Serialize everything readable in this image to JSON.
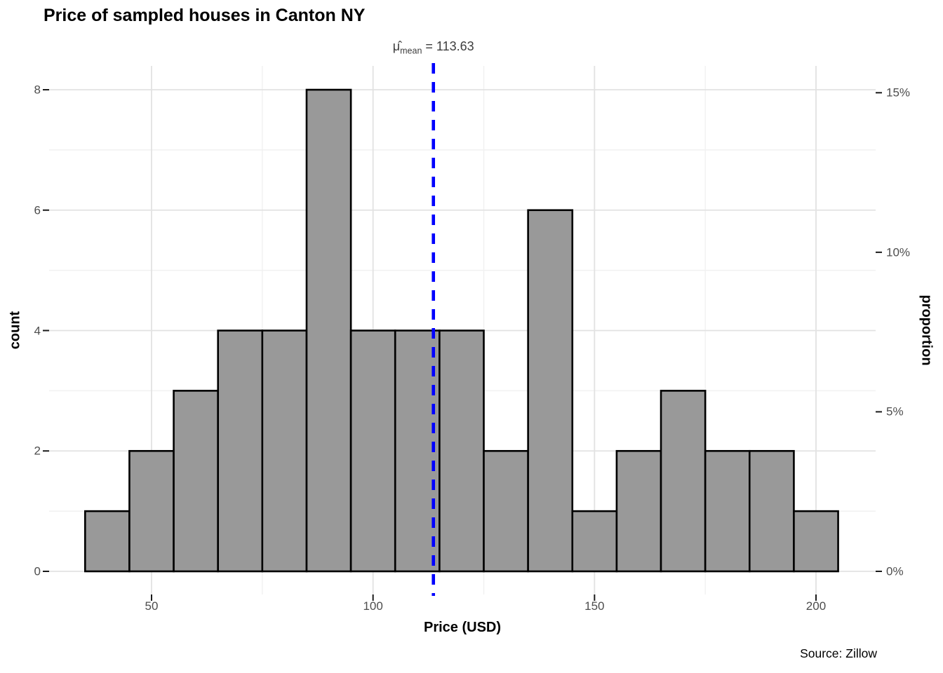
{
  "title": "Price of sampled houses in Canton NY",
  "caption": "Source: Zillow",
  "annotation": {
    "mu_hat": "μ̂",
    "subscript": "mean",
    "rest": " = 113.63",
    "full_text": "μ̂mean = 113.63"
  },
  "axes": {
    "x_title": "Price (USD)",
    "y_left_title": "count",
    "y_right_title": "proportion"
  },
  "chart_data": {
    "type": "bar",
    "subtype": "histogram",
    "title": "Price of sampled houses in Canton NY",
    "xlabel": "Price (USD)",
    "ylabel": "count",
    "ylabel_secondary": "proportion",
    "bin_width": 10,
    "bin_edges": [
      35,
      45,
      55,
      65,
      75,
      85,
      95,
      105,
      115,
      125,
      135,
      145,
      155,
      165,
      175,
      185,
      195,
      205
    ],
    "counts": [
      1,
      2,
      3,
      4,
      4,
      8,
      4,
      4,
      4,
      2,
      6,
      1,
      2,
      3,
      2,
      2,
      1
    ],
    "n_total": 53,
    "mean_line": {
      "value": 113.63,
      "label": "μ̂mean = 113.63",
      "style": "dashed",
      "orientation": "vertical"
    },
    "x_ticks": [
      50,
      100,
      150,
      200
    ],
    "x_minor_gridlines": [
      75,
      125,
      175
    ],
    "y_ticks_left": [
      0,
      2,
      4,
      6,
      8
    ],
    "y_minor_gridlines_left": [
      1,
      3,
      5,
      7
    ],
    "y_ticks_right": [
      {
        "pct": 0,
        "label": "0%"
      },
      {
        "pct": 5,
        "label": "5%"
      },
      {
        "pct": 10,
        "label": "10%"
      },
      {
        "pct": 15,
        "label": "15%"
      }
    ],
    "xlim": [
      26.5,
      213.5
    ],
    "ylim_counts": [
      -0.4,
      8.4
    ],
    "grid": "major-and-minor",
    "legend": "none",
    "caption": "Source: Zillow"
  },
  "colors": {
    "bar_fill": "#999999",
    "bar_stroke": "#000000",
    "mean_line": "#0000fe",
    "grid_major": "#e2e2e2",
    "grid_minor": "#f1f1f1",
    "tick_mark": "#1a1a1a",
    "tick_text": "#4d4d4d",
    "title_text": "#000000",
    "annotation_text": "#3d3d3d",
    "background": "#ffffff"
  }
}
